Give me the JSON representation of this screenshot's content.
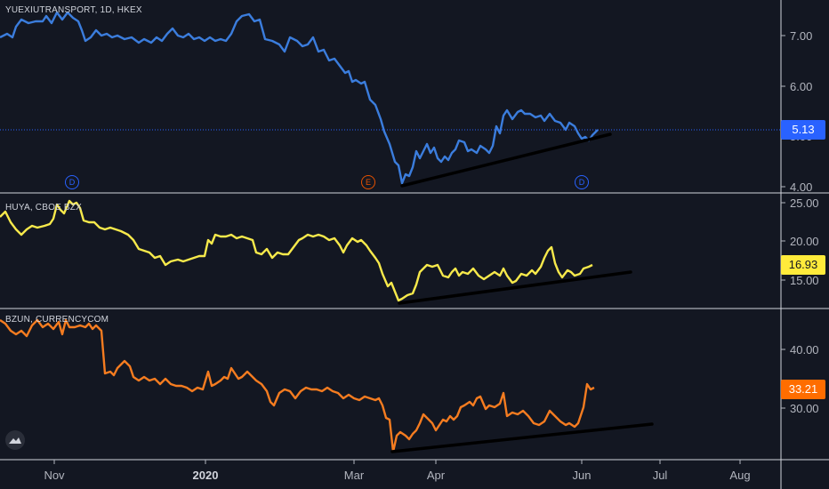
{
  "panes": [
    {
      "title": "YUEXIUTRANSPORT, 1D, HKEX",
      "last_price": "5.13",
      "line_color": "#3b7ddd",
      "tag_bg": "#2962ff",
      "tag_fg": "#ffffff",
      "price_ticks": [
        "7.00",
        "6.00",
        "5.00",
        "4.00"
      ],
      "markers": [
        {
          "label": "D",
          "type": "dividend",
          "color": "#2962ff",
          "date": "Nov"
        },
        {
          "label": "E",
          "type": "earnings",
          "color": "#e65100",
          "date": "Mar"
        },
        {
          "label": "D",
          "type": "dividend",
          "color": "#2962ff",
          "date": "Jun"
        }
      ]
    },
    {
      "title": "HUYA, CBOE BZX",
      "last_price": "16.93",
      "line_color": "#f7e94b",
      "tag_bg": "#ffeb3b",
      "tag_fg": "#131722",
      "price_ticks": [
        "25.00",
        "20.00",
        "15.00"
      ]
    },
    {
      "title": "BZUN, CURRENCYCOM",
      "last_price": "33.21",
      "line_color": "#f57c20",
      "tag_bg": "#ff6d00",
      "tag_fg": "#ffffff",
      "price_ticks": [
        "40.00",
        "30.00"
      ]
    }
  ],
  "time_axis": [
    "Nov",
    "2020",
    "Mar",
    "Apr",
    "Jun",
    "Jul",
    "Aug"
  ],
  "trendline_color": "#000000",
  "logo_icon": "tradingview-logo-icon"
}
